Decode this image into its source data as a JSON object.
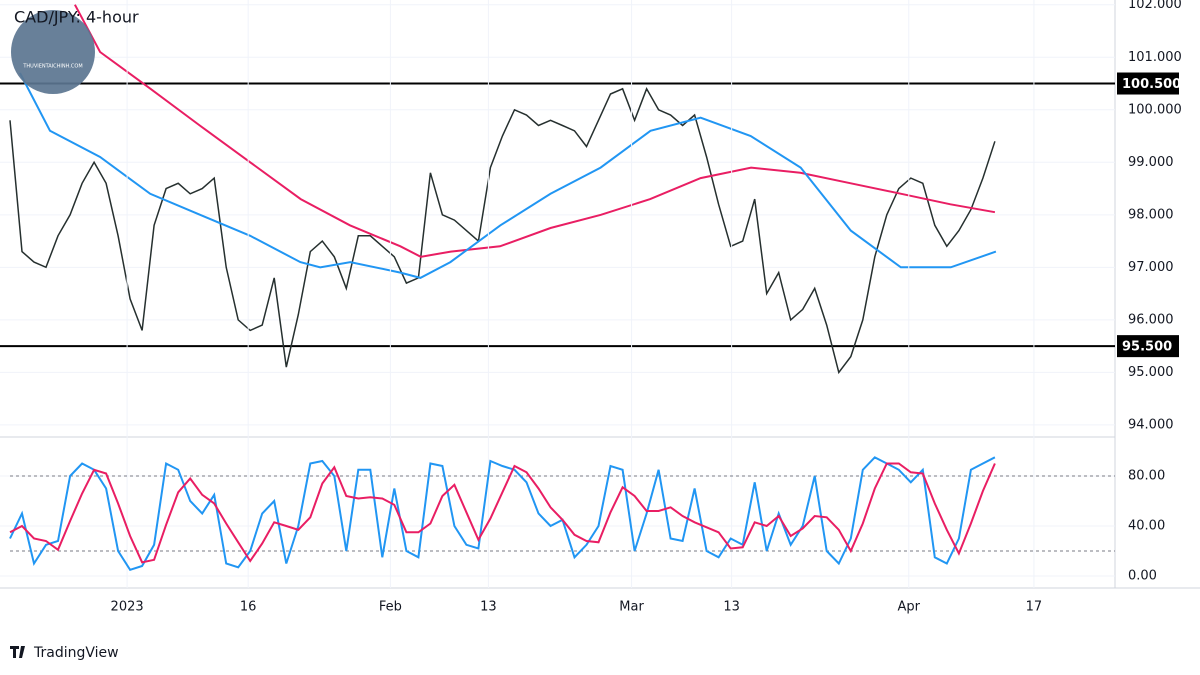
{
  "header": {
    "title": "CAD/JPY: 4-hour",
    "logo": "THUVIENTAICHINH.COM"
  },
  "footer": {
    "brand": "TradingView"
  },
  "chart_data": [
    {
      "type": "line",
      "ylim": [
        93.77,
        102.09
      ],
      "xlim": [
        0,
        92
      ],
      "yticks": [
        {
          "value": 94,
          "label": "94.000"
        },
        {
          "value": 95,
          "label": "95.000"
        },
        {
          "value": 96,
          "label": "96.000"
        },
        {
          "value": 97,
          "label": "97.000"
        },
        {
          "value": 98,
          "label": "98.000"
        },
        {
          "value": 99,
          "label": "99.000"
        },
        {
          "value": 100,
          "label": "100.000"
        },
        {
          "value": 101,
          "label": "101.000"
        },
        {
          "value": 102,
          "label": "102.000"
        }
      ],
      "hlines": [
        {
          "value": 100.5,
          "label": "100.500"
        },
        {
          "value": 95.5,
          "label": "95.500"
        }
      ],
      "series": [
        {
          "color": "#26302f",
          "x": [
            0,
            1,
            2,
            3,
            4,
            5,
            6,
            7,
            8,
            9,
            10,
            11,
            12,
            13,
            14,
            15,
            16,
            17,
            18,
            19,
            20,
            21,
            22,
            23,
            24,
            25,
            26,
            27,
            28,
            29,
            30,
            31,
            32,
            33,
            34,
            35,
            36,
            37,
            38,
            39,
            40,
            41,
            42,
            43,
            44,
            45,
            46,
            47,
            48,
            49,
            50,
            51,
            52,
            53,
            54,
            55,
            56,
            57,
            58,
            59,
            60,
            61,
            62,
            63,
            64,
            65,
            66,
            67,
            68,
            69,
            70,
            71,
            72,
            73,
            74,
            75,
            76,
            77,
            78,
            79,
            80,
            81,
            82
          ],
          "values": [
            99.8,
            97.3,
            97.1,
            97.0,
            97.6,
            98.0,
            98.6,
            99.0,
            98.6,
            97.6,
            96.4,
            95.8,
            97.8,
            98.5,
            98.6,
            98.4,
            98.5,
            98.7,
            97.0,
            96.0,
            95.8,
            95.9,
            96.8,
            95.1,
            96.1,
            97.3,
            97.5,
            97.2,
            96.6,
            97.6,
            97.6,
            97.4,
            97.2,
            96.7,
            96.8,
            98.8,
            98.0,
            97.9,
            97.7,
            97.5,
            98.9,
            99.5,
            100.0,
            99.9,
            99.7,
            99.8,
            99.7,
            99.6,
            99.3,
            99.8,
            100.3,
            100.4,
            99.8,
            100.4,
            100.0,
            99.9,
            99.7,
            99.9,
            99.1,
            98.2,
            97.4,
            97.5,
            98.3,
            96.5,
            96.9,
            96.0,
            96.2,
            96.6,
            95.9,
            95.0,
            95.3,
            96.0,
            97.2,
            98.0,
            98.5,
            98.7,
            98.6,
            97.8,
            97.4,
            97.7,
            98.1,
            98.7,
            99.4
          ]
        },
        {
          "color": "#e91e63",
          "x": [
            5.4,
            7.5,
            11.7,
            15.8,
            20,
            24.2,
            28.3,
            32.5,
            34.2,
            36.7,
            40.8,
            45,
            49.2,
            53.3,
            57.5,
            61.7,
            65.8,
            70,
            74.2,
            78.3,
            82
          ],
          "values": [
            102.0,
            101.1,
            100.4,
            99.7,
            99.0,
            98.3,
            97.8,
            97.4,
            97.2,
            97.3,
            97.4,
            97.75,
            98.0,
            98.3,
            98.7,
            98.9,
            98.8,
            98.6,
            98.4,
            98.2,
            98.05
          ]
        },
        {
          "color": "#2196f3",
          "x": [
            0.83,
            3.33,
            7.5,
            11.67,
            15.83,
            20,
            24.17,
            25.83,
            28.33,
            32.5,
            34.17,
            36.67,
            40.83,
            45,
            49.17,
            53.33,
            57.5,
            61.67,
            65.83,
            70,
            74.17,
            78.33,
            82.08
          ],
          "values": [
            100.7,
            99.6,
            99.1,
            98.4,
            98.0,
            97.6,
            97.1,
            97.0,
            97.1,
            96.9,
            96.8,
            97.1,
            97.8,
            98.4,
            98.9,
            99.6,
            99.85,
            99.5,
            98.9,
            97.7,
            97.0,
            97.0,
            97.3
          ]
        }
      ]
    },
    {
      "type": "line",
      "ylim": [
        -9.6,
        111.2
      ],
      "xlim": [
        0,
        92
      ],
      "levels": [
        20,
        80
      ],
      "yticks": [
        {
          "value": 0,
          "label": "0.00"
        },
        {
          "value": 40,
          "label": "40.00"
        },
        {
          "value": 80,
          "label": "80.00"
        }
      ],
      "xticks": [
        {
          "value": 9.75,
          "label": "2023"
        },
        {
          "value": 19.83,
          "label": "16"
        },
        {
          "value": 31.67,
          "label": "Feb"
        },
        {
          "value": 39.83,
          "label": "13"
        },
        {
          "value": 51.75,
          "label": "Mar"
        },
        {
          "value": 60.08,
          "label": "13"
        },
        {
          "value": 74.83,
          "label": "Apr"
        },
        {
          "value": 85.25,
          "label": "17"
        }
      ],
      "series": [
        {
          "color": "#2196f3",
          "x": [
            0,
            1,
            2,
            3,
            4,
            5,
            6,
            7,
            8,
            9,
            10,
            11,
            12,
            13,
            14,
            15,
            16,
            17,
            18,
            19,
            20,
            21,
            22,
            23,
            24,
            25,
            26,
            27,
            28,
            29,
            30,
            31,
            32,
            33,
            34,
            35,
            36,
            37,
            38,
            39,
            40,
            41,
            42,
            43,
            44,
            45,
            46,
            47,
            48,
            49,
            50,
            51,
            52,
            53,
            54,
            55,
            56,
            57,
            58,
            59,
            60,
            61,
            62,
            63,
            64,
            65,
            66,
            67,
            68,
            69,
            70,
            71,
            72,
            73,
            74,
            75,
            76,
            77,
            78,
            79,
            80,
            81,
            82
          ],
          "values": [
            30,
            50,
            10,
            25,
            28,
            80,
            90,
            85,
            70,
            20,
            5,
            8,
            25,
            90,
            85,
            60,
            50,
            65,
            10,
            7,
            20,
            50,
            60,
            10,
            40,
            90,
            92,
            80,
            20,
            85,
            85,
            15,
            70,
            20,
            15,
            90,
            88,
            40,
            25,
            22,
            92,
            88,
            85,
            75,
            50,
            40,
            45,
            15,
            25,
            40,
            88,
            85,
            20,
            50,
            85,
            30,
            28,
            70,
            20,
            15,
            30,
            25,
            75,
            20,
            50,
            25,
            40,
            80,
            20,
            10,
            30,
            85,
            95,
            90,
            85,
            75,
            85,
            15,
            10,
            30,
            85,
            90,
            95
          ]
        },
        {
          "color": "#e91e63",
          "x": [
            0,
            1,
            2,
            3,
            4,
            5,
            6,
            7,
            8,
            9,
            10,
            11,
            12,
            13,
            14,
            15,
            16,
            17,
            18,
            19,
            20,
            21,
            22,
            23,
            24,
            25,
            26,
            27,
            28,
            29,
            30,
            31,
            32,
            33,
            34,
            35,
            36,
            37,
            38,
            39,
            40,
            41,
            42,
            43,
            44,
            45,
            46,
            47,
            48,
            49,
            50,
            51,
            52,
            53,
            54,
            55,
            56,
            57,
            58,
            59,
            60,
            61,
            62,
            63,
            64,
            65,
            66,
            67,
            68,
            69,
            70,
            71,
            72,
            73,
            74,
            75,
            76,
            77,
            78,
            79,
            80,
            81,
            82
          ],
          "values": [
            35,
            40,
            30,
            28,
            21,
            44,
            66,
            85,
            82,
            58,
            32,
            11,
            13,
            41,
            67,
            78,
            65,
            58,
            42,
            27,
            12,
            26,
            43,
            40,
            37,
            47,
            74,
            87,
            64,
            62,
            63,
            62,
            57,
            35,
            35,
            42,
            64,
            73,
            51,
            29,
            46,
            67,
            88,
            83,
            70,
            55,
            45,
            33,
            28,
            27,
            51,
            71,
            64,
            52,
            52,
            55,
            48,
            43,
            39,
            35,
            22,
            23,
            43,
            40,
            48,
            32,
            38,
            48,
            47,
            37,
            20,
            42,
            70,
            90,
            90,
            83,
            82,
            58,
            37,
            18,
            42,
            68,
            90
          ]
        }
      ]
    }
  ]
}
